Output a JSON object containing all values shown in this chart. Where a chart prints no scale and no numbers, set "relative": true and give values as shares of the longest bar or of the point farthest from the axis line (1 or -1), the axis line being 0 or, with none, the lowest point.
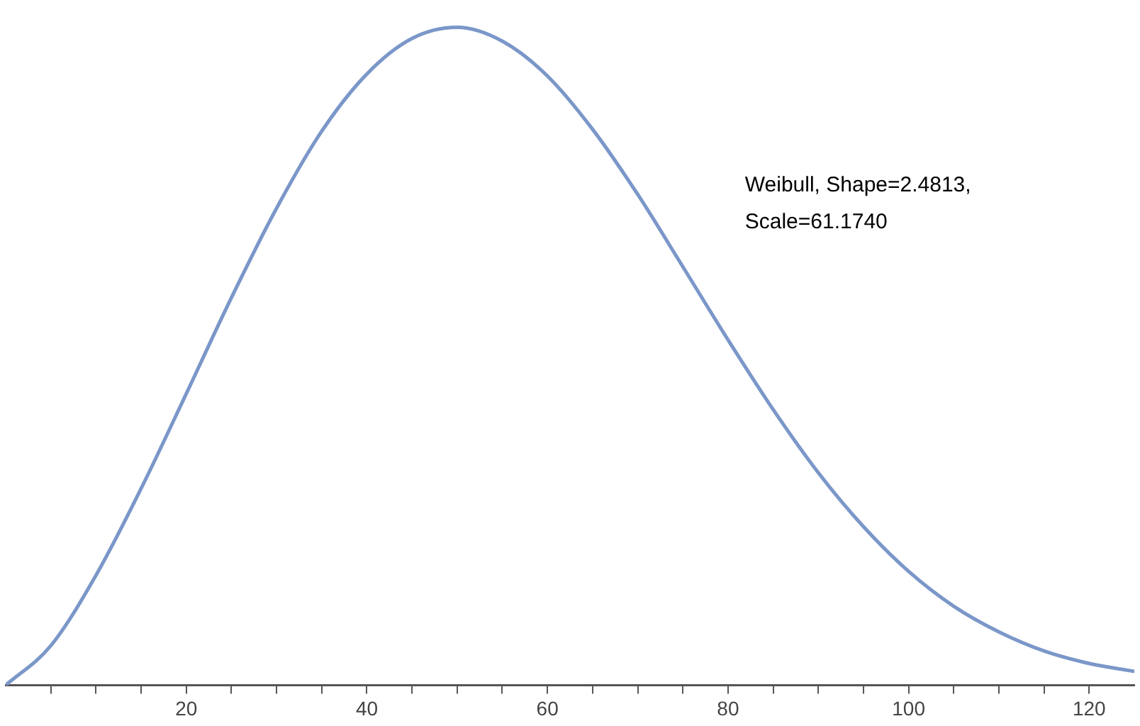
{
  "chart_data": {
    "type": "line",
    "relative": true,
    "x": [
      0,
      5,
      10,
      15,
      20,
      25,
      30,
      35,
      40,
      45,
      50,
      55,
      60,
      65,
      70,
      75,
      80,
      85,
      90,
      95,
      100,
      105,
      110,
      115,
      120,
      125
    ],
    "series": [
      {
        "color": "#7b97c9",
        "values": [
          0,
          0.06,
          0.167,
          0.299,
          0.443,
          0.589,
          0.725,
          0.842,
          0.929,
          0.983,
          1,
          0.979,
          0.926,
          0.845,
          0.746,
          0.636,
          0.525,
          0.419,
          0.323,
          0.241,
          0.173,
          0.12,
          0.081,
          0.052,
          0.033,
          0.021
        ]
      }
    ],
    "xlim": [
      0,
      125
    ],
    "xticks": [
      {
        "value": 5,
        "label": null
      },
      {
        "value": 10,
        "label": null
      },
      {
        "value": 15,
        "label": null
      },
      20,
      {
        "value": 25,
        "label": null
      },
      {
        "value": 30,
        "label": null
      },
      {
        "value": 35,
        "label": null
      },
      40,
      {
        "value": 45,
        "label": null
      },
      {
        "value": 50,
        "label": null
      },
      {
        "value": 55,
        "label": null
      },
      60,
      {
        "value": 65,
        "label": null
      },
      {
        "value": 70,
        "label": null
      },
      {
        "value": 75,
        "label": null
      },
      80,
      {
        "value": 85,
        "label": null
      },
      {
        "value": 90,
        "label": null
      },
      {
        "value": 95,
        "label": null
      },
      100,
      {
        "value": 105,
        "label": null
      },
      {
        "value": 110,
        "label": null
      },
      {
        "value": 115,
        "label": null
      },
      120
    ],
    "annotations": [
      "Weibull, Shape=2.4813,\nScale=61.1740"
    ],
    "grid": false,
    "legend": false,
    "marker": "none",
    "line_style": "solid"
  }
}
